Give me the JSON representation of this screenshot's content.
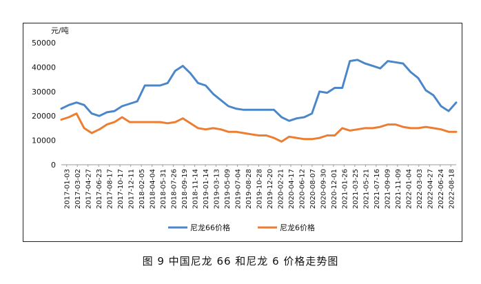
{
  "caption": "图 9  中国尼龙 66 和尼龙 6 价格走势图",
  "chart_data": {
    "type": "line",
    "title": "",
    "ylabel": "元/吨",
    "xlabel": "",
    "ylim": [
      0,
      50000
    ],
    "yticks": [
      0,
      10000,
      20000,
      30000,
      40000,
      50000
    ],
    "grid": false,
    "legend_position": "bottom",
    "x_tick_labels": [
      "2017-01-03",
      "2017-03-02",
      "2017-04-27",
      "2017-06-23",
      "2017-08-17",
      "2017-10-17",
      "2017-12-11",
      "2018-02-05",
      "2018-04-04",
      "2018-05-31",
      "2018-07-26",
      "2018-09-19",
      "2018-11-14",
      "2019-01-14",
      "2019-03-13",
      "2019-05-09",
      "2019-07-04",
      "2019-08-28",
      "2019-10-28",
      "2019-12-20",
      "2020-02-21",
      "2020-04-17",
      "2020-06-12",
      "2020-08-07",
      "2020-09-30",
      "2020-12-01",
      "2021-01-26",
      "2021-03-25",
      "2021-05-21",
      "2021-07-16",
      "2021-09-09",
      "2021-11-09",
      "2022-01-04",
      "2022-03-03",
      "2022-04-27",
      "2022-06-24",
      "2022-08-18"
    ],
    "series": [
      {
        "name": "尼龙66价格",
        "color": "#4a86c8",
        "values": [
          23000,
          24500,
          25500,
          24500,
          21000,
          20000,
          21500,
          22000,
          24000,
          25000,
          26000,
          32500,
          32500,
          32500,
          33500,
          38500,
          40500,
          37500,
          33500,
          32500,
          29000,
          26500,
          24000,
          23000,
          22500,
          22500,
          22500,
          22500,
          22500,
          19500,
          18000,
          19000,
          19500,
          21000,
          30000,
          29500,
          31500,
          31500,
          42500,
          43000,
          41500,
          40500,
          39500,
          42500,
          42000,
          41500,
          38000,
          35500,
          30500,
          28500,
          24000,
          22000,
          25500
        ]
      },
      {
        "name": "尼龙6价格",
        "color": "#ed7d31",
        "values": [
          18500,
          19500,
          21000,
          15000,
          13000,
          14500,
          16500,
          17500,
          19500,
          17500,
          17500,
          17500,
          17500,
          17500,
          17000,
          17500,
          19000,
          17000,
          15000,
          14500,
          15000,
          14500,
          13500,
          13500,
          13000,
          12500,
          12000,
          12000,
          11000,
          9500,
          11500,
          11000,
          10500,
          10500,
          11000,
          12000,
          12000,
          15000,
          14000,
          14500,
          15000,
          15000,
          15500,
          16500,
          16500,
          15500,
          15000,
          15000,
          15500,
          15000,
          14500,
          13500,
          13500
        ]
      }
    ]
  }
}
